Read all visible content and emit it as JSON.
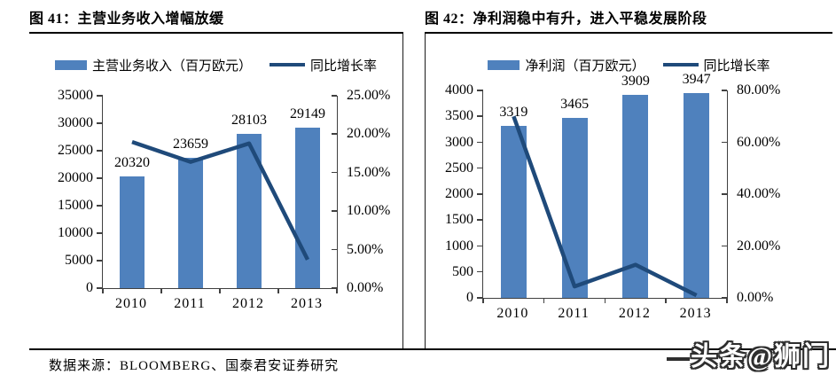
{
  "page": {
    "footer": {
      "source": "数据来源：BLOOMBERG、国泰君安证券研究"
    },
    "watermark": {
      "text": "头条@狮门"
    }
  },
  "colors": {
    "bar": "#4f81bd",
    "line": "#1f4a7a",
    "axis": "#404040"
  },
  "chart_data": [
    {
      "type": "combo-bar-line",
      "title": "图 41：主营业务收入增幅放缓",
      "categories": [
        "2010",
        "2011",
        "2012",
        "2013"
      ],
      "series": [
        {
          "name": "主营业务收入（百万欧元）",
          "kind": "bar",
          "axis": "left",
          "values": [
            20320,
            23659,
            28103,
            29149
          ],
          "color": "#4f81bd"
        },
        {
          "name": "同比增长率",
          "kind": "line",
          "axis": "right",
          "unit": "%",
          "values": [
            19.0,
            16.4,
            18.8,
            3.7
          ],
          "color": "#1f4a7a"
        }
      ],
      "bar_labels": [
        "20320",
        "23659",
        "28103",
        "29149"
      ],
      "left_axis": {
        "min": 0,
        "max": 35000,
        "step": 5000,
        "ticks": [
          "0",
          "5000",
          "10000",
          "15000",
          "20000",
          "25000",
          "30000",
          "35000"
        ]
      },
      "right_axis": {
        "min": 0,
        "max": 25,
        "step": 5,
        "ticks": [
          "0.00%",
          "5.00%",
          "10.00%",
          "15.00%",
          "20.00%",
          "25.00%"
        ]
      },
      "grid": false,
      "legend_position": "top"
    },
    {
      "type": "combo-bar-line",
      "title": "图 42：净利润稳中有升，进入平稳发展阶段",
      "categories": [
        "2010",
        "2011",
        "2012",
        "2013"
      ],
      "series": [
        {
          "name": "净利润（百万欧元）",
          "kind": "bar",
          "axis": "left",
          "values": [
            3319,
            3465,
            3909,
            3947
          ],
          "color": "#4f81bd"
        },
        {
          "name": "同比增长率",
          "kind": "line",
          "axis": "right",
          "unit": "%",
          "values": [
            70.0,
            4.4,
            12.8,
            1.0
          ],
          "color": "#1f4a7a"
        }
      ],
      "bar_labels": [
        "3319",
        "3465",
        "3909",
        "3947"
      ],
      "left_axis": {
        "min": 0,
        "max": 4000,
        "step": 500,
        "ticks": [
          "0",
          "500",
          "1000",
          "1500",
          "2000",
          "2500",
          "3000",
          "3500",
          "4000"
        ]
      },
      "right_axis": {
        "min": 0,
        "max": 80,
        "step": 20,
        "ticks": [
          "0.00%",
          "20.00%",
          "40.00%",
          "60.00%",
          "80.00%"
        ]
      },
      "grid": false,
      "legend_position": "top"
    }
  ]
}
